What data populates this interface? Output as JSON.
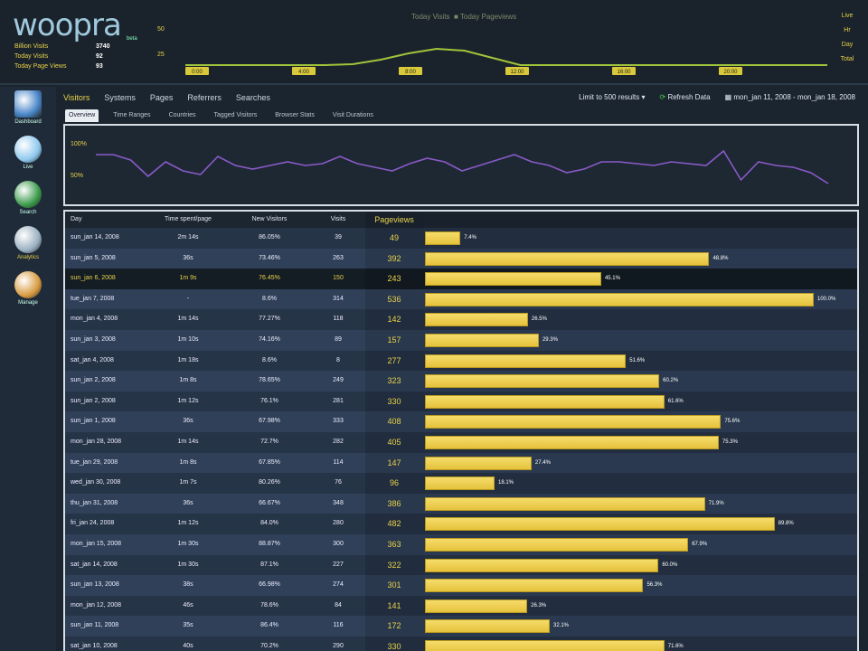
{
  "app": {
    "logo": "woopra",
    "logo_sub": "beta"
  },
  "header": {
    "stats": [
      {
        "label": "Billion Visits",
        "value": "3740"
      },
      {
        "label": "Today Visits",
        "value": "92"
      },
      {
        "label": "Today Page Views",
        "value": "93"
      }
    ],
    "legend": [
      "Today Visits",
      "Today Pageviews"
    ],
    "y_labels": [
      "50",
      "25"
    ],
    "x_labels": [
      "0:00",
      "4:00",
      "8:00",
      "12:00",
      "16:00",
      "20:00"
    ],
    "right_labels": [
      "Live",
      "Hr",
      "Day",
      "Total"
    ],
    "line": [
      22,
      22,
      22,
      22,
      22,
      22,
      21,
      16,
      9,
      4,
      6,
      14,
      22,
      22,
      22,
      22,
      22,
      22,
      22,
      22,
      22,
      22,
      22,
      22
    ],
    "line_color": "#9fc43a"
  },
  "sidebar": [
    {
      "label": "Dashboard",
      "icon": "dashboard-icon",
      "color": "#4a86c8"
    },
    {
      "label": "Live",
      "icon": "globe-icon",
      "color": "#8ec8ee"
    },
    {
      "label": "Search",
      "icon": "search-icon",
      "color": "#3a9a4a"
    },
    {
      "label": "Analytics",
      "icon": "analytics-icon",
      "color": "#9ab0c0",
      "active": true
    },
    {
      "label": "Manage",
      "icon": "manage-icon",
      "color": "#d89a40"
    }
  ],
  "tabs": [
    {
      "label": "Visitors",
      "active": true
    },
    {
      "label": "Systems"
    },
    {
      "label": "Pages"
    },
    {
      "label": "Referrers"
    },
    {
      "label": "Searches"
    }
  ],
  "tools": {
    "limit": "Limit to 500 results ▾",
    "refresh": "Refresh Data",
    "range": "mon_jan 11, 2008 - mon_jan 18, 2008"
  },
  "subtabs": [
    {
      "label": "Overview",
      "active": true
    },
    {
      "label": "Time Ranges"
    },
    {
      "label": "Countries"
    },
    {
      "label": "Tagged Visitors"
    },
    {
      "label": "Browser Stats"
    },
    {
      "label": "Visit Durations"
    }
  ],
  "mid_chart": {
    "y_labels": [
      "100%",
      "50%"
    ],
    "values": [
      52,
      52,
      46,
      28,
      44,
      34,
      30,
      50,
      40,
      36,
      40,
      44,
      40,
      42,
      50,
      42,
      38,
      34,
      42,
      48,
      44,
      34,
      40,
      46,
      52,
      44,
      40,
      32,
      36,
      44,
      44,
      42,
      40,
      44,
      42,
      40,
      56,
      24,
      44,
      40,
      38,
      32,
      20
    ],
    "color": "#8a5ac8"
  },
  "table": {
    "columns": [
      "Day",
      "Time spent/page",
      "New Visitors",
      "Visits",
      "Pageviews",
      ""
    ],
    "selected_row": 2,
    "rows": [
      [
        "sun_jan 14, 2008",
        "2m 14s",
        "86.05%",
        "39",
        "49",
        "7.4%"
      ],
      [
        "sun_jan 5, 2008",
        "36s",
        "73.46%",
        "263",
        "392",
        "48.8%"
      ],
      [
        "sun_jan 6, 2008",
        "1m 9s",
        "76.45%",
        "150",
        "243",
        "45.1%"
      ],
      [
        "tue_jan 7, 2008",
        "-",
        "8.6%",
        "314",
        "536",
        "100.0%"
      ],
      [
        "mon_jan 4, 2008",
        "1m 14s",
        "77.27%",
        "118",
        "142",
        "26.5%"
      ],
      [
        "sun_jan 3, 2008",
        "1m 10s",
        "74.16%",
        "89",
        "157",
        "29.3%"
      ],
      [
        "sat_jan 4, 2008",
        "1m 18s",
        "8.6%",
        "8",
        "277",
        "51.6%"
      ],
      [
        "sun_jan 2, 2008",
        "1m 8s",
        "78.65%",
        "249",
        "323",
        "60.2%"
      ],
      [
        "sun_jan 2, 2008",
        "1m 12s",
        "76.1%",
        "281",
        "330",
        "61.6%"
      ],
      [
        "sun_jan 1, 2008",
        "36s",
        "67.98%",
        "333",
        "408",
        "75.6%"
      ],
      [
        "mon_jan 28, 2008",
        "1m 14s",
        "72.7%",
        "282",
        "405",
        "75.3%"
      ],
      [
        "tue_jan 29, 2008",
        "1m 8s",
        "67.85%",
        "114",
        "147",
        "27.4%"
      ],
      [
        "wed_jan 30, 2008",
        "1m 7s",
        "80.26%",
        "76",
        "96",
        "18.1%"
      ],
      [
        "thu_jan 31, 2008",
        "36s",
        "66.67%",
        "348",
        "386",
        "71.9%"
      ],
      [
        "fri_jan 24, 2008",
        "1m 12s",
        "84.0%",
        "280",
        "482",
        "89.8%"
      ],
      [
        "mon_jan 15, 2008",
        "1m 30s",
        "88.87%",
        "300",
        "363",
        "67.9%"
      ],
      [
        "sat_jan 14, 2008",
        "1m 30s",
        "87.1%",
        "227",
        "322",
        "60.0%"
      ],
      [
        "sun_jan 13, 2008",
        "38s",
        "66.98%",
        "274",
        "301",
        "56.3%"
      ],
      [
        "mon_jan 12, 2008",
        "46s",
        "78.6%",
        "84",
        "141",
        "26.3%"
      ],
      [
        "sun_jan 11, 2008",
        "35s",
        "86.4%",
        "116",
        "172",
        "32.1%"
      ],
      [
        "sat_jan 10, 2008",
        "40s",
        "70.2%",
        "290",
        "330",
        "71.6%"
      ]
    ],
    "bar_color": "#e8c840"
  }
}
